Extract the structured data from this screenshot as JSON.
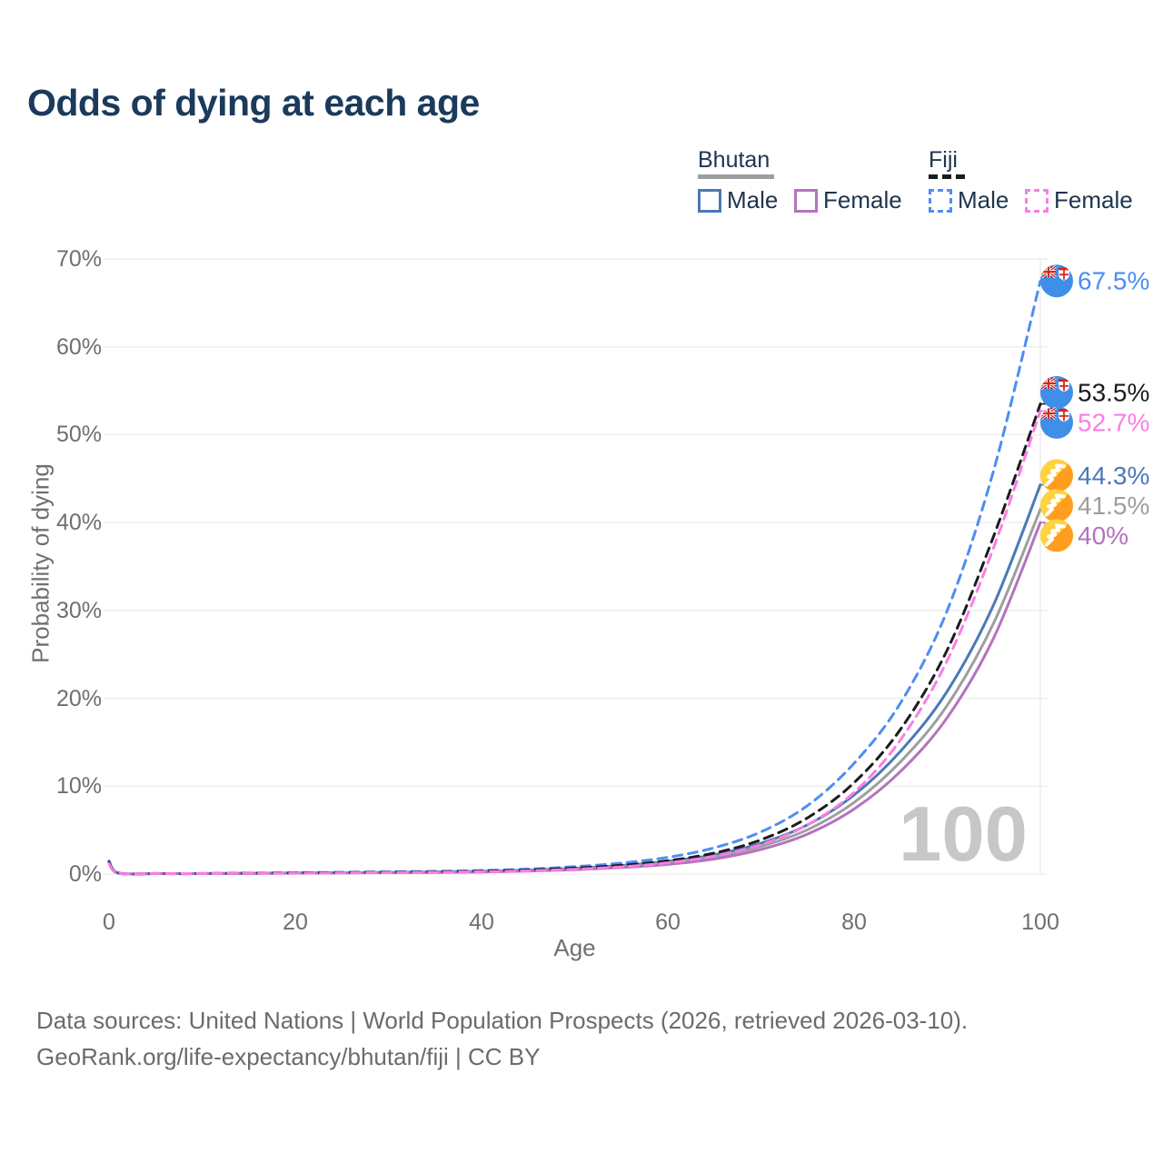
{
  "title": "Odds of dying at each age",
  "legend": {
    "groups": [
      {
        "title": "Bhutan",
        "line_style": "solid",
        "line_color": "#9e9e9e",
        "items": [
          {
            "label": "Male",
            "color": "#4a79b6"
          },
          {
            "label": "Female",
            "color": "#b473bd"
          }
        ]
      },
      {
        "title": "Fiji",
        "line_style": "dashed",
        "line_color": "#1c1c1c",
        "items": [
          {
            "label": "Male",
            "color": "#4e8df2"
          },
          {
            "label": "Female",
            "color": "#fb7ce8"
          }
        ]
      }
    ]
  },
  "chart_data": {
    "type": "line",
    "title": "Odds of dying at each age",
    "xlabel": "Age",
    "ylabel": "Probability of dying",
    "xlim": [
      0,
      100
    ],
    "ylim": [
      0,
      70
    ],
    "grid": "horizontal",
    "legend_position": "top-right",
    "frame_label": "100",
    "x_ticks": [
      "0",
      "20",
      "40",
      "60",
      "80",
      "100"
    ],
    "x_tick_values": [
      0,
      20,
      40,
      60,
      80,
      100
    ],
    "y_ticks": [
      "0%",
      "10%",
      "20%",
      "30%",
      "40%",
      "50%",
      "60%",
      "70%"
    ],
    "y_tick_values": [
      0,
      10,
      20,
      30,
      40,
      50,
      60,
      70
    ],
    "x": [
      0,
      1,
      5,
      10,
      15,
      20,
      25,
      30,
      35,
      40,
      45,
      50,
      55,
      60,
      65,
      70,
      75,
      80,
      85,
      90,
      95,
      100
    ],
    "series": [
      {
        "country": "Bhutan",
        "sex": "male",
        "color": "#4a79b6",
        "dash": false,
        "flag": "bhutan",
        "end_label": "44.3%",
        "end_value": 44.3,
        "values": [
          1.45,
          0.12,
          0.06,
          0.06,
          0.09,
          0.13,
          0.16,
          0.2,
          0.25,
          0.32,
          0.45,
          0.66,
          0.98,
          1.45,
          2.2,
          3.5,
          5.6,
          9.0,
          14.0,
          20.8,
          30.7,
          44.3
        ]
      },
      {
        "country": "Bhutan",
        "sex": "both",
        "color": "#9e9e9e",
        "dash": false,
        "flag": "bhutan",
        "end_label": "41.5%",
        "end_value": 41.5,
        "values": [
          1.35,
          0.11,
          0.05,
          0.05,
          0.08,
          0.11,
          0.14,
          0.18,
          0.22,
          0.28,
          0.39,
          0.58,
          0.86,
          1.28,
          1.98,
          3.15,
          5.05,
          8.15,
          12.8,
          19.2,
          28.6,
          41.5
        ]
      },
      {
        "country": "Bhutan",
        "sex": "female",
        "color": "#b473bd",
        "dash": false,
        "flag": "bhutan",
        "end_label": "40%",
        "end_value": 40,
        "values": [
          1.25,
          0.1,
          0.05,
          0.05,
          0.07,
          0.09,
          0.12,
          0.15,
          0.19,
          0.24,
          0.33,
          0.5,
          0.74,
          1.1,
          1.72,
          2.8,
          4.55,
          7.4,
          11.7,
          17.8,
          26.9,
          40.0
        ]
      },
      {
        "country": "Fiji",
        "sex": "male",
        "color": "#4e8df2",
        "dash": true,
        "flag": "fiji",
        "end_label": "67.5%",
        "end_value": 67.5,
        "values": [
          1.5,
          0.12,
          0.06,
          0.06,
          0.1,
          0.16,
          0.2,
          0.25,
          0.31,
          0.4,
          0.57,
          0.85,
          1.25,
          1.9,
          3.0,
          4.8,
          7.8,
          12.6,
          19.5,
          30.0,
          46.0,
          67.5
        ]
      },
      {
        "country": "Fiji",
        "sex": "both",
        "color": "#1c1c1c",
        "dash": true,
        "flag": "fiji",
        "end_label": "53.5%",
        "end_value": 53.5,
        "values": [
          1.35,
          0.11,
          0.05,
          0.05,
          0.09,
          0.13,
          0.17,
          0.21,
          0.26,
          0.33,
          0.46,
          0.68,
          1.0,
          1.52,
          2.4,
          3.9,
          6.4,
          10.4,
          16.5,
          25.5,
          38.5,
          53.5
        ]
      },
      {
        "country": "Fiji",
        "sex": "female",
        "color": "#fb7ce8",
        "dash": true,
        "flag": "fiji",
        "end_label": "52.7%",
        "end_value": 52.7,
        "values": [
          1.2,
          0.1,
          0.05,
          0.05,
          0.07,
          0.1,
          0.13,
          0.17,
          0.21,
          0.27,
          0.37,
          0.55,
          0.82,
          1.28,
          2.05,
          3.35,
          5.6,
          9.3,
          15.3,
          24.3,
          37.2,
          52.7
        ]
      }
    ]
  },
  "footer": {
    "line1": "Data sources: United Nations | World Population Prospects (2026, retrieved 2026-03-10).",
    "line2": "GeoRank.org/life-expectancy/bhutan/fiji | CC BY"
  }
}
